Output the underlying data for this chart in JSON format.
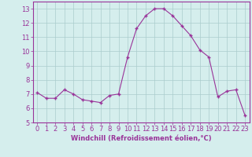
{
  "x": [
    0,
    1,
    2,
    3,
    4,
    5,
    6,
    7,
    8,
    9,
    10,
    11,
    12,
    13,
    14,
    15,
    16,
    17,
    18,
    19,
    20,
    21,
    22,
    23
  ],
  "y": [
    7.1,
    6.7,
    6.7,
    7.3,
    7.0,
    6.6,
    6.5,
    6.4,
    6.9,
    7.0,
    9.6,
    11.6,
    12.5,
    13.0,
    13.0,
    12.5,
    11.8,
    11.1,
    10.1,
    9.6,
    6.8,
    7.2,
    7.3,
    5.5
  ],
  "line_color": "#993399",
  "marker": "+",
  "marker_size": 3,
  "bg_color": "#d5eeed",
  "grid_color": "#aacccc",
  "axis_color": "#993399",
  "xlabel": "Windchill (Refroidissement éolien,°C)",
  "xlim": [
    -0.5,
    23.5
  ],
  "ylim": [
    5,
    13.5
  ],
  "yticks": [
    5,
    6,
    7,
    8,
    9,
    10,
    11,
    12,
    13
  ],
  "xticks": [
    0,
    1,
    2,
    3,
    4,
    5,
    6,
    7,
    8,
    9,
    10,
    11,
    12,
    13,
    14,
    15,
    16,
    17,
    18,
    19,
    20,
    21,
    22,
    23
  ],
  "label_fontsize": 6,
  "tick_fontsize": 6
}
